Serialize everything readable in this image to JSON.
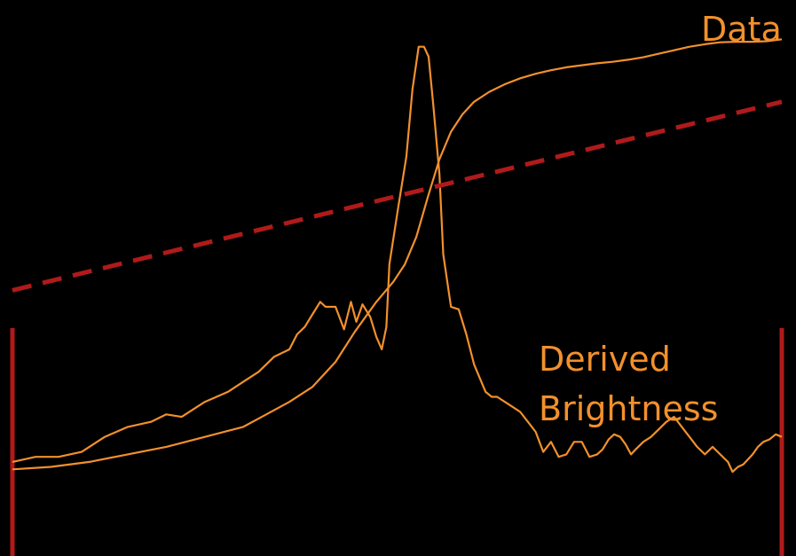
{
  "colors": {
    "background": "#000000",
    "curve": "#f2902c",
    "dashed_line": "#b01a1a",
    "boundary": "#b01a1a"
  },
  "chart_data": {
    "type": "line",
    "title": "",
    "xlabel": "",
    "ylabel": "",
    "grid": false,
    "xlim": [
      0,
      100
    ],
    "ylim": [
      0,
      100
    ],
    "annotations": {
      "data_label": "Data",
      "derived_label_line1": "Derived",
      "derived_label_line2": "Brightness"
    },
    "series": [
      {
        "name": "Data",
        "style": "solid",
        "x": [
          0,
          3,
          6,
          9,
          12,
          15,
          18,
          20,
          22,
          25,
          28,
          30,
          32,
          34,
          36,
          37,
          38,
          39,
          40,
          40.7,
          41.3,
          42,
          43.1,
          44,
          44.7,
          45.5,
          46.5,
          47.3,
          48,
          48.6,
          49,
          50.1,
          51.2,
          52,
          52.8,
          53.5,
          54.1,
          54.7,
          55.5,
          56,
          57,
          58,
          59,
          60,
          61.5,
          62.3,
          63,
          64,
          65,
          66,
          67,
          68,
          69,
          70,
          71,
          72,
          73,
          74,
          75,
          76,
          76.7,
          77.5,
          78.2,
          79,
          79.7,
          80.4,
          81,
          82,
          83,
          84,
          85,
          86,
          87,
          88,
          89,
          90,
          91,
          92,
          93,
          93.6,
          94.3,
          95,
          95.6,
          96.2,
          96.9,
          97.6,
          98.4,
          99.2,
          100
        ],
        "y": [
          13.5,
          14.5,
          14.5,
          15.5,
          18.5,
          20.5,
          21.5,
          23,
          22.5,
          25.5,
          27.5,
          29.5,
          31.5,
          34.5,
          36,
          39,
          40.5,
          43,
          45.5,
          44.5,
          44.5,
          44.5,
          40,
          45.5,
          41.5,
          45,
          42.5,
          38.5,
          36,
          40.5,
          53,
          64,
          74.5,
          88,
          96.5,
          96.5,
          94.5,
          85,
          71,
          55,
          44.5,
          44,
          39,
          33,
          27.5,
          26.5,
          26.5,
          25.5,
          24.5,
          23.5,
          21.5,
          19.5,
          15.5,
          17.5,
          14.5,
          15,
          17.5,
          17.5,
          14.5,
          15,
          16,
          18,
          19,
          18.5,
          17,
          15,
          16,
          17.5,
          18.5,
          20,
          21.5,
          22.5,
          20.5,
          18.5,
          16.5,
          15,
          16.5,
          15,
          13.5,
          11.5,
          12.5,
          13,
          14,
          15,
          16.5,
          17.5,
          18,
          19,
          18.5
        ]
      },
      {
        "name": "Derived Brightness",
        "style": "solid",
        "x": [
          0,
          5,
          10,
          15,
          20,
          25,
          30,
          33,
          36,
          39,
          42,
          44.5,
          47.3,
          49.5,
          51,
          52.5,
          54,
          55.5,
          57,
          58.5,
          60,
          62,
          64,
          66,
          68,
          70,
          72,
          74,
          76,
          78,
          80,
          82,
          84,
          86,
          88,
          90,
          92,
          94,
          96,
          98,
          100
        ],
        "y": [
          12,
          12.5,
          13.5,
          15,
          16.5,
          18.5,
          20.5,
          23,
          25.5,
          28.5,
          33.5,
          39.5,
          45.5,
          49.5,
          53,
          58.5,
          66.5,
          74,
          79.5,
          83,
          85.5,
          87.5,
          89,
          90.2,
          91.1,
          91.8,
          92.4,
          92.8,
          93.2,
          93.5,
          93.9,
          94.4,
          95.1,
          95.8,
          96.5,
          97,
          97.4,
          97.5,
          97.5,
          97.6,
          98
        ]
      },
      {
        "style": "dashed",
        "x": [
          0,
          100
        ],
        "y": [
          47.8,
          85.5
        ]
      }
    ],
    "markers": [
      {
        "type": "vertical_line",
        "x": 0
      },
      {
        "type": "vertical_line",
        "x": 100
      }
    ]
  }
}
